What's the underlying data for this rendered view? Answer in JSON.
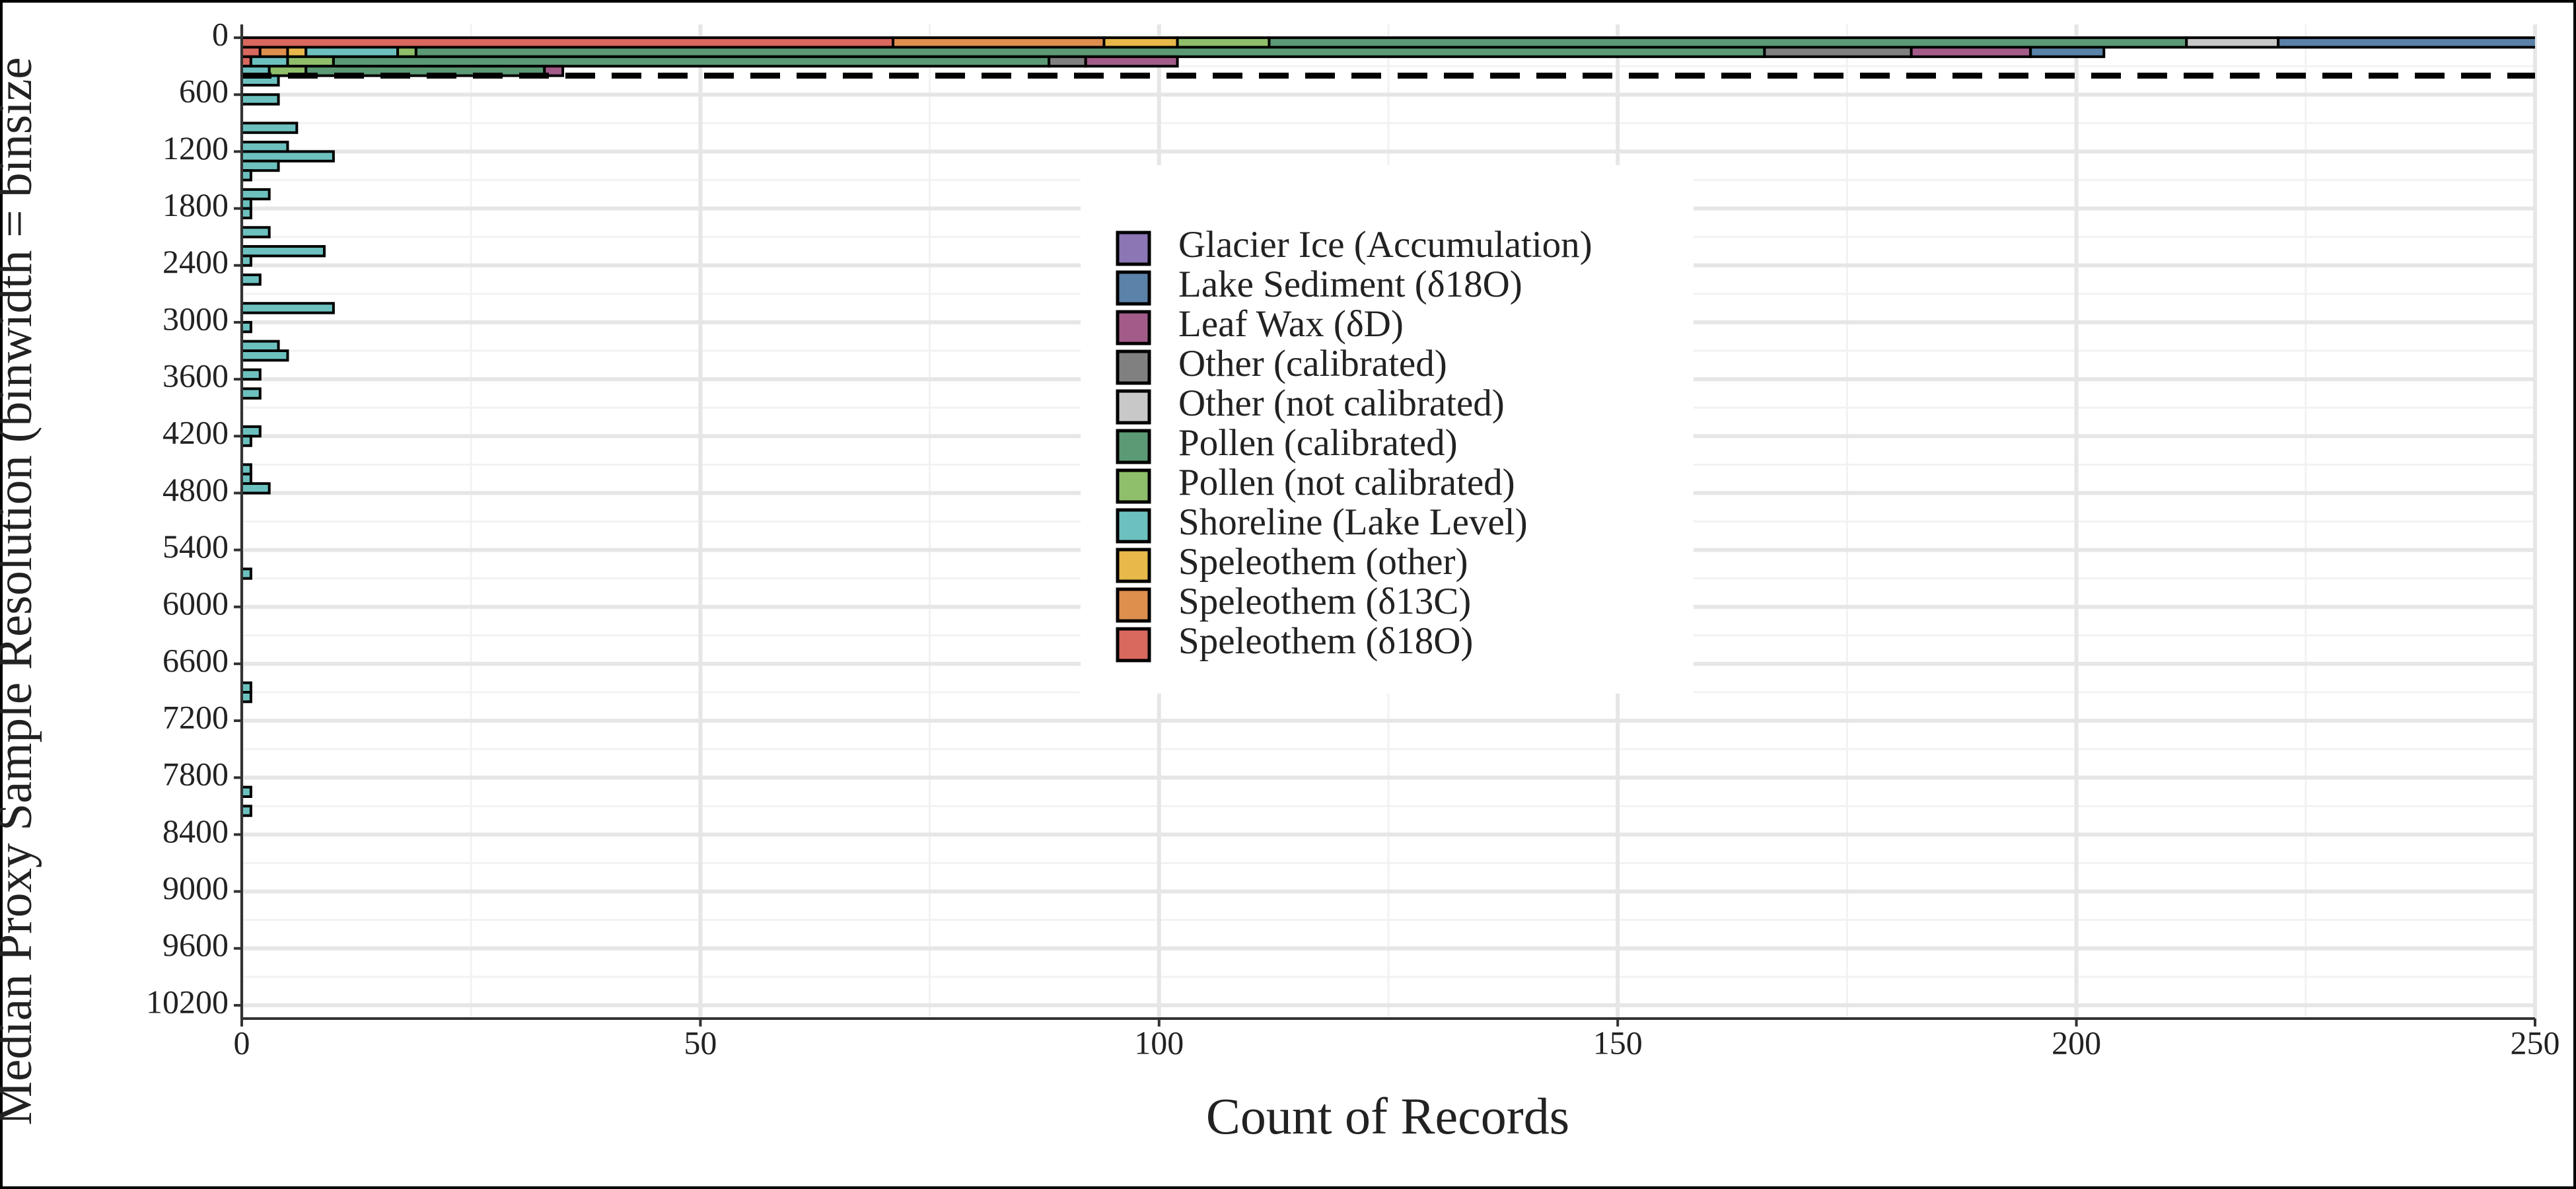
{
  "chart_data": {
    "type": "hbar_stacked",
    "x_label": "Count of Records",
    "y_label": "Median Proxy Sample Resolution (binwidth = binsize",
    "y": [
      0,
      100,
      200,
      300,
      400,
      600,
      900,
      1100,
      1200,
      1300,
      1400,
      1600,
      1700,
      1800,
      2000,
      2200,
      2300,
      2500,
      2800,
      3000,
      3200,
      3300,
      3500,
      3700,
      4100,
      4200,
      4500,
      4600,
      4700,
      5600,
      6800,
      6900,
      7900,
      8100
    ],
    "series": [
      {
        "name": "Glacier Ice (Accumulation)",
        "color": "#8c76b4",
        "values": [
          0,
          0,
          0,
          0,
          0,
          0,
          0,
          0,
          0,
          0,
          0,
          0,
          0,
          0,
          0,
          0,
          0,
          0,
          0,
          0,
          0,
          0,
          0,
          0,
          0,
          0,
          0,
          0,
          0,
          0,
          0,
          0,
          0,
          0
        ]
      },
      {
        "name": "Lake Sediment (δ18O)",
        "color": "#5b82a8",
        "values": [
          30,
          8,
          0,
          0,
          0,
          0,
          0,
          0,
          0,
          0,
          0,
          0,
          0,
          0,
          0,
          0,
          0,
          0,
          0,
          0,
          0,
          0,
          0,
          0,
          0,
          0,
          0,
          0,
          0,
          0,
          0,
          0,
          0,
          0
        ]
      },
      {
        "name": "Leaf Wax (δD)",
        "color": "#a35c8a",
        "values": [
          0,
          13,
          10,
          2,
          0,
          0,
          0,
          0,
          0,
          0,
          0,
          0,
          0,
          0,
          0,
          0,
          0,
          0,
          0,
          0,
          0,
          0,
          0,
          0,
          0,
          0,
          0,
          0,
          0,
          0,
          0,
          0,
          0,
          0
        ]
      },
      {
        "name": "Other (calibrated)",
        "color": "#808080",
        "values": [
          0,
          16,
          4,
          0,
          0,
          0,
          0,
          0,
          0,
          0,
          0,
          0,
          0,
          0,
          0,
          0,
          0,
          0,
          0,
          0,
          0,
          0,
          0,
          0,
          0,
          0,
          0,
          0,
          0,
          0,
          0,
          0,
          0,
          0
        ]
      },
      {
        "name": "Other (not calibrated)",
        "color": "#c8c8c8",
        "values": [
          10,
          0,
          0,
          0,
          0,
          0,
          0,
          0,
          0,
          0,
          0,
          0,
          0,
          0,
          0,
          0,
          0,
          0,
          0,
          0,
          0,
          0,
          0,
          0,
          0,
          0,
          0,
          0,
          0,
          0,
          0,
          0,
          0,
          0
        ]
      },
      {
        "name": "Pollen (calibrated)",
        "color": "#5b9a75",
        "values": [
          100,
          147,
          78,
          26,
          0,
          0,
          0,
          0,
          0,
          0,
          0,
          0,
          0,
          0,
          0,
          0,
          0,
          0,
          0,
          0,
          0,
          0,
          0,
          0,
          0,
          0,
          0,
          0,
          0,
          0,
          0,
          0,
          0,
          0
        ]
      },
      {
        "name": "Pollen (not calibrated)",
        "color": "#8fbf6a",
        "values": [
          10,
          2,
          5,
          4,
          0,
          0,
          0,
          0,
          0,
          0,
          0,
          0,
          0,
          0,
          0,
          0,
          0,
          0,
          0,
          0,
          0,
          0,
          0,
          0,
          0,
          0,
          0,
          0,
          0,
          0,
          0,
          0,
          0,
          0
        ]
      },
      {
        "name": "Shoreline (Lake Level)",
        "color": "#6cc1bf",
        "values": [
          0,
          10,
          4,
          3,
          4,
          4,
          6,
          5,
          10,
          4,
          1,
          3,
          1,
          1,
          3,
          9,
          1,
          2,
          10,
          1,
          4,
          5,
          2,
          2,
          2,
          1,
          1,
          1,
          3,
          1,
          1,
          1,
          1,
          1
        ]
      },
      {
        "name": "Speleothem (other)",
        "color": "#e8b84a",
        "values": [
          8,
          2,
          0,
          0,
          0,
          0,
          0,
          0,
          0,
          0,
          0,
          0,
          0,
          0,
          0,
          0,
          0,
          0,
          0,
          0,
          0,
          0,
          0,
          0,
          0,
          0,
          0,
          0,
          0,
          0,
          0,
          0,
          0,
          0
        ]
      },
      {
        "name": "Speleothem (δ13C)",
        "color": "#de8f4e",
        "values": [
          23,
          3,
          0,
          0,
          0,
          0,
          0,
          0,
          0,
          0,
          0,
          0,
          0,
          0,
          0,
          0,
          0,
          0,
          0,
          0,
          0,
          0,
          0,
          0,
          0,
          0,
          0,
          0,
          0,
          0,
          0,
          0,
          0,
          0
        ]
      },
      {
        "name": "Speleothem (δ18O)",
        "color": "#d9685f",
        "values": [
          71,
          2,
          1,
          0,
          0,
          0,
          0,
          0,
          0,
          0,
          0,
          0,
          0,
          0,
          0,
          0,
          0,
          0,
          0,
          0,
          0,
          0,
          0,
          0,
          0,
          0,
          0,
          0,
          0,
          0,
          0,
          0,
          0,
          0
        ]
      }
    ],
    "xlim": [
      0,
      250
    ],
    "xticks": [
      0,
      50,
      100,
      150,
      200,
      250
    ],
    "x_minor_ticks": [
      25,
      75,
      125,
      175,
      225
    ],
    "ylim": [
      -140,
      10340
    ],
    "y_reversed": true,
    "yticks": [
      0,
      600,
      1200,
      1800,
      2400,
      3000,
      3600,
      4200,
      4800,
      5400,
      6000,
      6600,
      7200,
      7800,
      8400,
      9000,
      9600,
      10200
    ],
    "y_minor_ticks": [
      300,
      900,
      1500,
      2100,
      2700,
      3300,
      3900,
      4500,
      5100,
      5700,
      6300,
      6900,
      7500,
      8100,
      8700,
      9300,
      9900
    ],
    "hline": 400,
    "grid": true
  }
}
